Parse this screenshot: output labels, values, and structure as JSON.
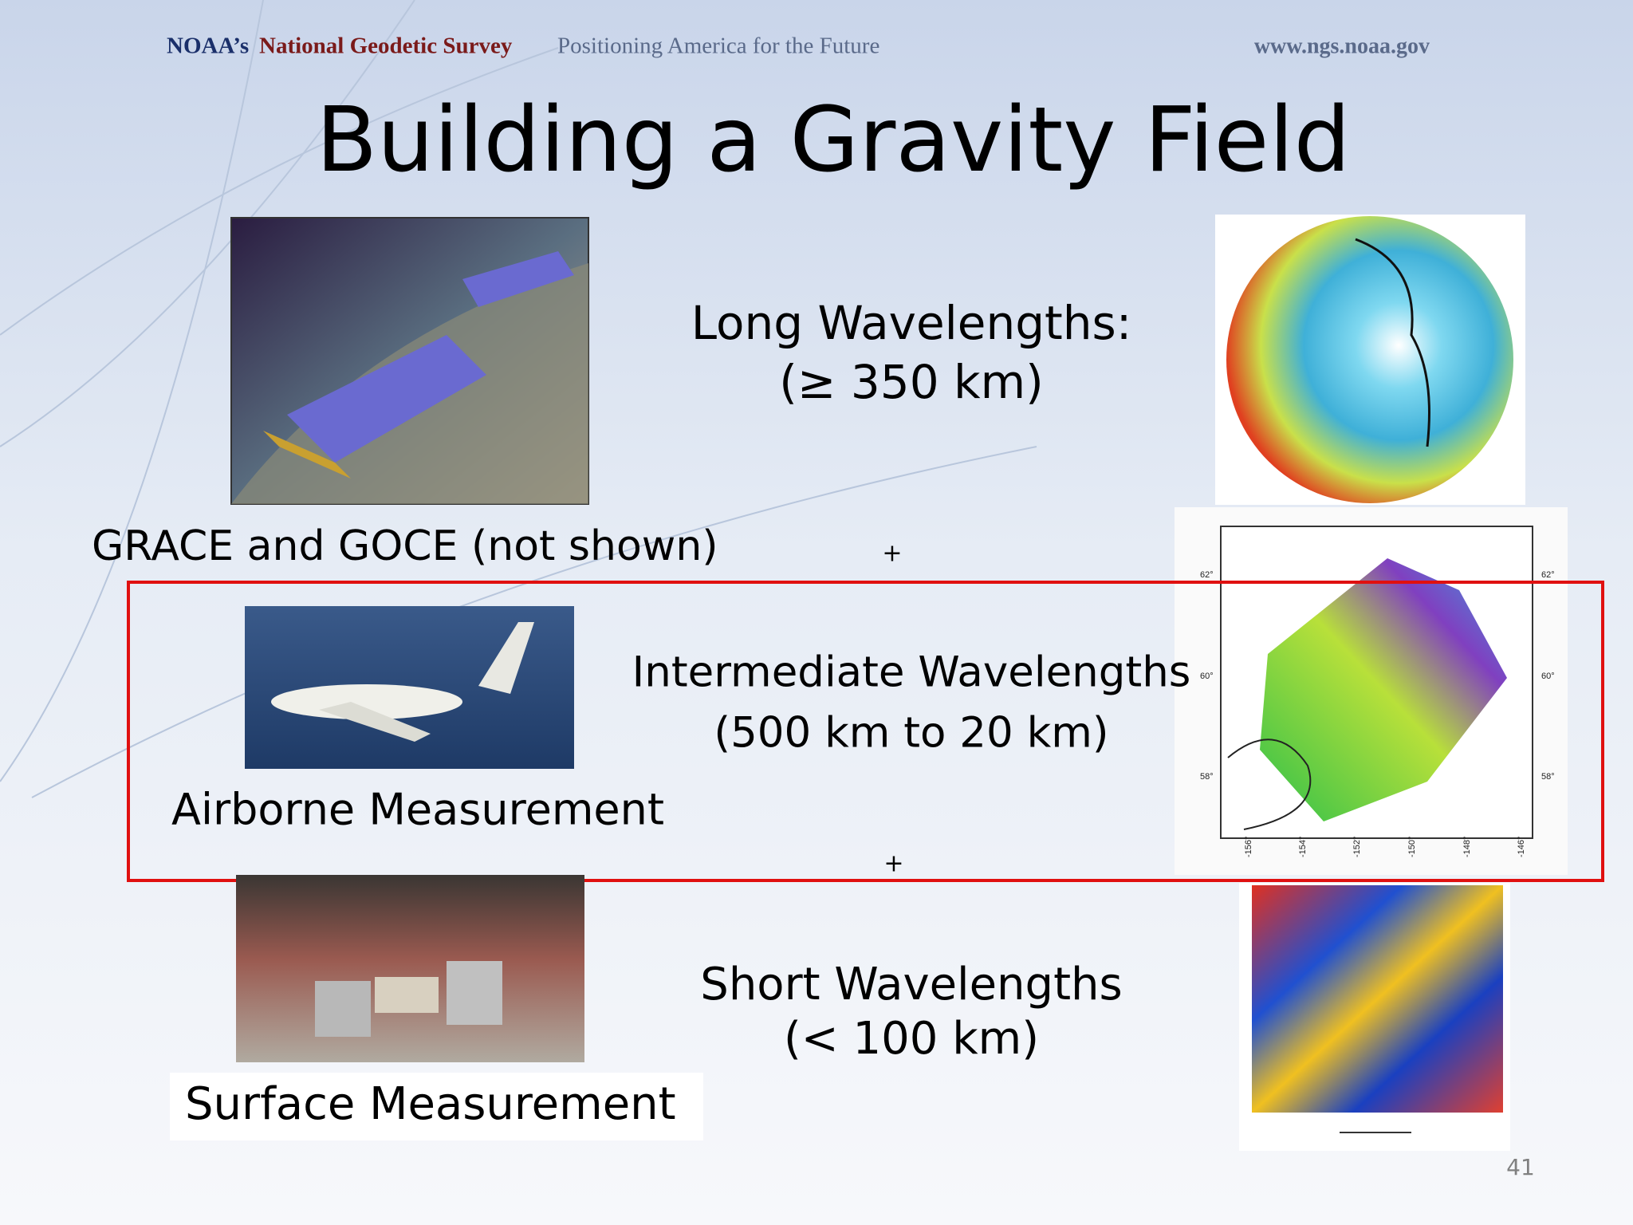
{
  "header": {
    "org_prefix": "NOAA’s",
    "org_name": "National Geodetic Survey",
    "tagline": "Positioning America for the Future",
    "url": "www.ngs.noaa.gov"
  },
  "title": "Building a Gravity Field",
  "sections": [
    {
      "label": "Long Wavelengths:",
      "range": "(≥ 350 km)",
      "source": "GRACE and GOCE (not shown)"
    },
    {
      "label": "Intermediate Wavelengths",
      "range": "(500 km to 20 km)",
      "source": "Airborne Measurement"
    },
    {
      "label": "Short Wavelengths",
      "range": "(< 100 km)",
      "source": "Surface Measurement"
    }
  ],
  "separators": [
    "+",
    "+"
  ],
  "map_labels": {
    "lat": [
      "62°",
      "60°",
      "58°"
    ],
    "lon": [
      "-156°",
      "-154°",
      "-152°",
      "-150°",
      "-148°",
      "-146°"
    ]
  },
  "page_number": "41"
}
